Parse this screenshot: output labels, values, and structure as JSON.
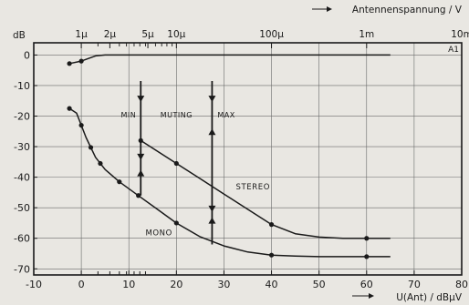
{
  "chart_data": {
    "type": "line",
    "title": "",
    "xlabel": "U(Ant) / dBµV",
    "ylabel": "dB",
    "x2label": "Antennenspannung / V",
    "corner_label": "A1",
    "xlim": [
      -10,
      80
    ],
    "ylim": [
      -72,
      0
    ],
    "xticks": [
      -10,
      0,
      10,
      20,
      30,
      40,
      50,
      60,
      70,
      80
    ],
    "yticks": [
      0,
      -10,
      -20,
      -30,
      -40,
      -50,
      -60,
      -70
    ],
    "grid": true,
    "top_axis": {
      "label": "Antennenspannung / V",
      "ticks": [
        {
          "x": 0,
          "label": "1µ"
        },
        {
          "x": 6,
          "label": "2µ"
        },
        {
          "x": 14,
          "label": "5µ"
        },
        {
          "x": 20,
          "label": "10µ"
        },
        {
          "x": 40,
          "label": "100µ"
        },
        {
          "x": 60,
          "label": "1m"
        },
        {
          "x": 80,
          "label": "10m"
        }
      ],
      "minor_ticks": [
        3.5,
        8,
        9.5,
        11.1,
        12.3,
        13.5,
        15.6,
        16.9,
        18,
        19.1
      ]
    },
    "bottom_minor_ticks": [
      3.5,
      6,
      8,
      9.5,
      11.1,
      12.3,
      13.5
    ],
    "series": [
      {
        "name": "",
        "color": "#1a1a1a",
        "x": [
          -2.5,
          0,
          3,
          5,
          10,
          20,
          30,
          40,
          50,
          60,
          65
        ],
        "y": [
          -2.8,
          -2,
          -0.3,
          0,
          0,
          0,
          0,
          0,
          0,
          0,
          0
        ],
        "markers_x": [
          -2.5,
          0
        ]
      },
      {
        "name": "Mono",
        "color": "#1a1a1a",
        "x": [
          -2.5,
          -1,
          0,
          1,
          3,
          5,
          8,
          12,
          16,
          20,
          25,
          30,
          35,
          40,
          45,
          50,
          55,
          60,
          65
        ],
        "y": [
          -17.5,
          -19,
          -23,
          -27,
          -33.5,
          -37.5,
          -41.5,
          -46,
          -50.5,
          -55,
          -59.5,
          -62.5,
          -64.5,
          -65.5,
          -65.8,
          -66,
          -66,
          -66,
          -66
        ],
        "markers_x": [
          -2.5,
          0,
          2,
          4,
          8,
          12,
          20,
          40,
          60
        ]
      },
      {
        "name": "Stereo",
        "color": "#1a1a1a",
        "x": [
          12.5,
          15,
          20,
          25,
          30,
          35,
          40,
          45,
          50,
          55,
          60,
          65
        ],
        "y": [
          -28,
          -30.5,
          -35.5,
          -40.5,
          -45.5,
          -50.5,
          -55.5,
          -58.5,
          -59.6,
          -60,
          -60,
          -60
        ],
        "markers_x": [
          12.5,
          20,
          40,
          60
        ]
      }
    ],
    "muting": {
      "label_min": "MIN",
      "label_muting": "MUTING",
      "label_max": "MAX",
      "min_x": 12.5,
      "max_x": 27.5,
      "min_range": [
        -8.5,
        -46
      ],
      "max_range": [
        -8.5,
        -62
      ]
    },
    "annotations": [
      {
        "text": "STEREO",
        "x": 32.5,
        "y": -44
      },
      {
        "text": "MONO",
        "x": 13.5,
        "y": -59
      }
    ]
  }
}
